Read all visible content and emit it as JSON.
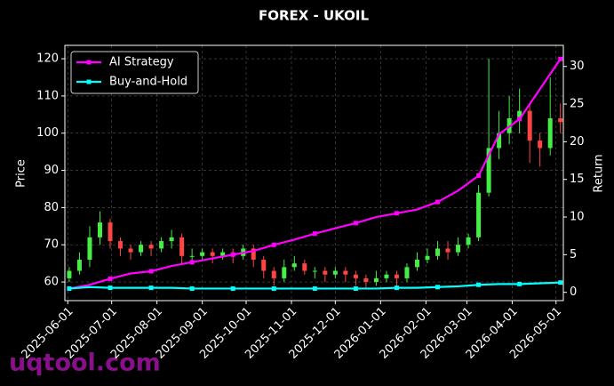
{
  "chart_data": {
    "type": "candlestick",
    "title": "FOREX - UKOIL",
    "ylabel": "Price",
    "y2label": "Return",
    "watermark": "uqtool.com",
    "up_color": "#44ee44",
    "down_color": "#ff4444",
    "grid": true,
    "legend": "upper-left",
    "xlim": [
      "2025-05-30",
      "2026-05-06"
    ],
    "ylim": [
      55,
      123.6
    ],
    "y2lim": [
      -1.1,
      32.8
    ],
    "xticks": [
      "2025-06-01",
      "2025-07-01",
      "2025-08-01",
      "2025-09-01",
      "2025-10-01",
      "2025-11-01",
      "2025-12-01",
      "2026-01-01",
      "2026-02-01",
      "2026-03-01",
      "2026-04-01",
      "2026-05-01"
    ],
    "yticks": [
      60,
      70,
      80,
      90,
      100,
      110,
      120
    ],
    "y2ticks": [
      0,
      5,
      10,
      15,
      20,
      25,
      30
    ],
    "candles": {
      "x": [
        "2025-06-02",
        "2025-06-09",
        "2025-06-16",
        "2025-06-23",
        "2025-06-30",
        "2025-07-07",
        "2025-07-14",
        "2025-07-21",
        "2025-07-28",
        "2025-08-04",
        "2025-08-11",
        "2025-08-18",
        "2025-08-25",
        "2025-09-01",
        "2025-09-08",
        "2025-09-15",
        "2025-09-22",
        "2025-09-29",
        "2025-10-06",
        "2025-10-13",
        "2025-10-20",
        "2025-10-27",
        "2025-11-03",
        "2025-11-10",
        "2025-11-17",
        "2025-11-24",
        "2025-12-01",
        "2025-12-08",
        "2025-12-15",
        "2025-12-22",
        "2025-12-29",
        "2026-01-05",
        "2026-01-12",
        "2026-01-19",
        "2026-01-26",
        "2026-02-02",
        "2026-02-09",
        "2026-02-16",
        "2026-02-23",
        "2026-03-02",
        "2026-03-09",
        "2026-03-16",
        "2026-03-23",
        "2026-03-30",
        "2026-04-06",
        "2026-04-13",
        "2026-04-20",
        "2026-04-27",
        "2026-05-04"
      ],
      "open": [
        61,
        63,
        66,
        72,
        76,
        71,
        69,
        68,
        70,
        69,
        71,
        72,
        67,
        67,
        68,
        67,
        68,
        67,
        69,
        66,
        63,
        61,
        64,
        65,
        63,
        63,
        62,
        63,
        62,
        61,
        60,
        61,
        62,
        61,
        64,
        66,
        67,
        69,
        68,
        70,
        72,
        84,
        96,
        100,
        104,
        106,
        98,
        96,
        104
      ],
      "high": [
        64,
        68,
        75,
        79,
        77,
        72,
        70,
        71,
        71,
        72,
        74,
        73,
        69,
        69,
        69,
        69,
        69,
        70,
        70,
        67,
        64,
        66,
        67,
        66,
        64,
        64,
        64,
        64,
        63,
        62,
        63,
        63,
        63,
        65,
        68,
        69,
        71,
        71,
        72,
        73,
        86,
        120,
        106,
        110,
        112,
        108,
        100,
        115,
        108
      ],
      "low": [
        60,
        62,
        64,
        70,
        69,
        67,
        66,
        67,
        67,
        68,
        69,
        65,
        65,
        66,
        65,
        66,
        65,
        66,
        64,
        61,
        59,
        60,
        63,
        62,
        61,
        60,
        61,
        60,
        59,
        58,
        59,
        60,
        59,
        60,
        63,
        65,
        66,
        66,
        67,
        69,
        71,
        83,
        93,
        97,
        100,
        92,
        91,
        94,
        100
      ],
      "close": [
        63,
        66,
        72,
        76,
        71,
        69,
        68,
        70,
        69,
        71,
        72,
        67,
        67,
        68,
        67,
        68,
        67,
        69,
        66,
        63,
        61,
        64,
        65,
        63,
        63,
        62,
        63,
        62,
        61,
        60,
        61,
        62,
        61,
        64,
        66,
        67,
        69,
        68,
        70,
        72,
        84,
        96,
        100,
        104,
        106,
        98,
        96,
        104,
        103
      ]
    },
    "series": [
      {
        "name": "AI Strategy",
        "color": "#ff00ff",
        "axis": "y2",
        "x": [
          "2025-06-02",
          "2025-06-16",
          "2025-06-30",
          "2025-07-14",
          "2025-07-28",
          "2025-08-11",
          "2025-08-25",
          "2025-09-08",
          "2025-09-22",
          "2025-10-06",
          "2025-10-20",
          "2025-11-03",
          "2025-11-17",
          "2025-12-01",
          "2025-12-15",
          "2025-12-29",
          "2026-01-12",
          "2026-01-26",
          "2026-02-09",
          "2026-02-23",
          "2026-03-09",
          "2026-03-23",
          "2026-04-06",
          "2026-04-20",
          "2026-05-04"
        ],
        "values": [
          0.5,
          1,
          1.8,
          2.5,
          2.8,
          3.5,
          4,
          4.5,
          5,
          5.5,
          6.3,
          7,
          7.8,
          8.5,
          9.2,
          10,
          10.5,
          11,
          12,
          13.5,
          15.5,
          21,
          23,
          27,
          31
        ]
      },
      {
        "name": "Buy-and-Hold",
        "color": "#00ffff",
        "axis": "y2",
        "x": [
          "2025-06-02",
          "2025-06-16",
          "2025-06-30",
          "2025-07-14",
          "2025-07-28",
          "2025-08-11",
          "2025-08-25",
          "2025-09-08",
          "2025-09-22",
          "2025-10-06",
          "2025-10-20",
          "2025-11-03",
          "2025-11-17",
          "2025-12-01",
          "2025-12-15",
          "2025-12-29",
          "2026-01-12",
          "2026-01-26",
          "2026-02-09",
          "2026-02-23",
          "2026-03-09",
          "2026-03-23",
          "2026-04-06",
          "2026-04-20",
          "2026-05-04"
        ],
        "values": [
          0.5,
          0.7,
          0.6,
          0.6,
          0.6,
          0.6,
          0.5,
          0.5,
          0.5,
          0.5,
          0.5,
          0.5,
          0.5,
          0.5,
          0.5,
          0.5,
          0.6,
          0.6,
          0.7,
          0.8,
          1,
          1.1,
          1.1,
          1.2,
          1.3
        ]
      }
    ]
  }
}
